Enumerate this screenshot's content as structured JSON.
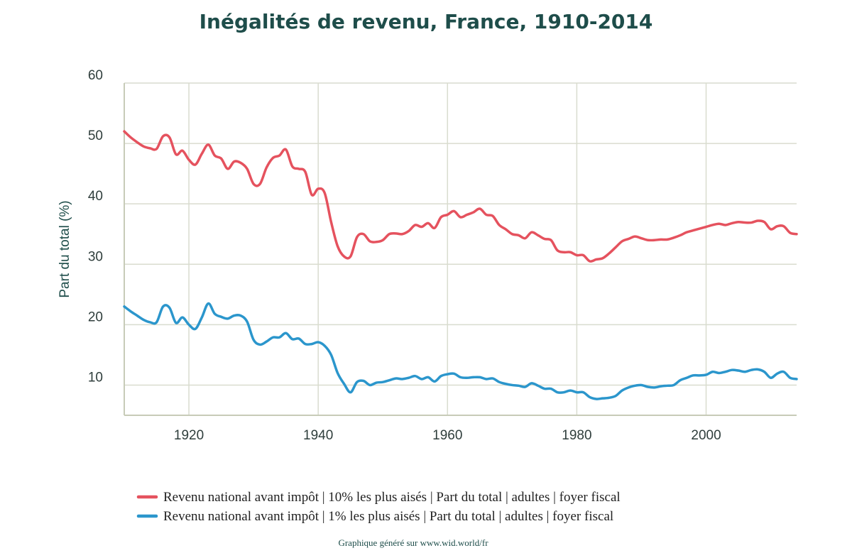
{
  "chart_data": {
    "type": "line",
    "title": "Inégalités de revenu, France, 1910-2014",
    "ylabel": "Part du total (%)",
    "xlim": [
      1910,
      2014
    ],
    "ylim": [
      5,
      60
    ],
    "xticks": [
      1920,
      1940,
      1960,
      1980,
      2000
    ],
    "yticks": [
      10,
      20,
      30,
      40,
      50,
      60
    ],
    "grid": true,
    "legend_position": "bottom",
    "footer": "Graphique généré sur www.wid.world/fr",
    "series": [
      {
        "name": "Revenu national avant impôt | 10% les plus aisés | Part du total | adultes | foyer fiscal",
        "color": "#e5525e",
        "x": [
          1910,
          1911,
          1912,
          1913,
          1914,
          1915,
          1916,
          1917,
          1918,
          1919,
          1920,
          1921,
          1922,
          1923,
          1924,
          1925,
          1926,
          1927,
          1928,
          1929,
          1930,
          1931,
          1932,
          1933,
          1934,
          1935,
          1936,
          1937,
          1938,
          1939,
          1940,
          1941,
          1942,
          1943,
          1944,
          1945,
          1946,
          1947,
          1948,
          1949,
          1950,
          1951,
          1952,
          1953,
          1954,
          1955,
          1956,
          1957,
          1958,
          1959,
          1960,
          1961,
          1962,
          1963,
          1964,
          1965,
          1966,
          1967,
          1968,
          1969,
          1970,
          1971,
          1972,
          1973,
          1974,
          1975,
          1976,
          1977,
          1978,
          1979,
          1980,
          1981,
          1982,
          1983,
          1984,
          1985,
          1986,
          1987,
          1988,
          1989,
          1990,
          1991,
          1992,
          1993,
          1994,
          1995,
          1996,
          1997,
          1998,
          1999,
          2000,
          2001,
          2002,
          2003,
          2004,
          2005,
          2006,
          2007,
          2008,
          2009,
          2010,
          2011,
          2012,
          2013,
          2014
        ],
        "y": [
          52,
          51,
          50.2,
          49.5,
          49.2,
          49.1,
          51.2,
          51,
          48.2,
          48.8,
          47.3,
          46.5,
          48.3,
          49.8,
          48,
          47.5,
          45.8,
          47,
          46.8,
          45.8,
          43.3,
          43.3,
          46,
          47.6,
          48,
          49,
          46.2,
          45.8,
          45.3,
          41.5,
          42.5,
          41.8,
          37,
          33,
          31.3,
          31.3,
          34.5,
          35,
          33.8,
          33.7,
          34,
          35,
          35.1,
          35,
          35.5,
          36.5,
          36.2,
          36.8,
          36,
          37.8,
          38.2,
          38.8,
          37.8,
          38.2,
          38.6,
          39.2,
          38.2,
          38,
          36.5,
          35.8,
          35,
          34.8,
          34.3,
          35.3,
          34.8,
          34.2,
          34,
          32.3,
          32,
          32,
          31.5,
          31.5,
          30.5,
          30.8,
          31,
          31.8,
          32.8,
          33.8,
          34.2,
          34.6,
          34.3,
          34,
          34,
          34.1,
          34.1,
          34.4,
          34.8,
          35.3,
          35.6,
          35.9,
          36.2,
          36.5,
          36.7,
          36.5,
          36.8,
          37,
          36.9,
          36.9,
          37.2,
          37,
          35.8,
          36.3,
          36.3,
          35.2,
          35
        ]
      },
      {
        "name": "Revenu national avant impôt | 1% les plus aisés | Part du total | adultes | foyer fiscal",
        "color": "#2b96cc",
        "x": [
          1910,
          1911,
          1912,
          1913,
          1914,
          1915,
          1916,
          1917,
          1918,
          1919,
          1920,
          1921,
          1922,
          1923,
          1924,
          1925,
          1926,
          1927,
          1928,
          1929,
          1930,
          1931,
          1932,
          1933,
          1934,
          1935,
          1936,
          1937,
          1938,
          1939,
          1940,
          1941,
          1942,
          1943,
          1944,
          1945,
          1946,
          1947,
          1948,
          1949,
          1950,
          1951,
          1952,
          1953,
          1954,
          1955,
          1956,
          1957,
          1958,
          1959,
          1960,
          1961,
          1962,
          1963,
          1964,
          1965,
          1966,
          1967,
          1968,
          1969,
          1970,
          1971,
          1972,
          1973,
          1974,
          1975,
          1976,
          1977,
          1978,
          1979,
          1980,
          1981,
          1982,
          1983,
          1984,
          1985,
          1986,
          1987,
          1988,
          1989,
          1990,
          1991,
          1992,
          1993,
          1994,
          1995,
          1996,
          1997,
          1998,
          1999,
          2000,
          2001,
          2002,
          2003,
          2004,
          2005,
          2006,
          2007,
          2008,
          2009,
          2010,
          2011,
          2012,
          2013,
          2014
        ],
        "y": [
          23,
          22.2,
          21.5,
          20.8,
          20.4,
          20.4,
          23,
          22.8,
          20.3,
          21.2,
          20,
          19.3,
          21.2,
          23.5,
          21.8,
          21.3,
          21,
          21.5,
          21.5,
          20.5,
          17.5,
          16.7,
          17.2,
          17.9,
          17.9,
          18.6,
          17.6,
          17.7,
          16.8,
          16.8,
          17.1,
          16.5,
          15,
          12,
          10.2,
          8.8,
          10.5,
          10.7,
          10,
          10.4,
          10.5,
          10.8,
          11.1,
          11,
          11.2,
          11.5,
          11,
          11.3,
          10.6,
          11.5,
          11.8,
          11.9,
          11.3,
          11.2,
          11.3,
          11.3,
          11,
          11.1,
          10.5,
          10.2,
          10,
          9.9,
          9.7,
          10.3,
          9.9,
          9.4,
          9.4,
          8.8,
          8.8,
          9.1,
          8.8,
          8.8,
          8,
          7.7,
          7.8,
          7.9,
          8.2,
          9.1,
          9.6,
          9.9,
          10,
          9.7,
          9.6,
          9.8,
          9.9,
          10,
          10.8,
          11.2,
          11.6,
          11.6,
          11.7,
          12.2,
          12,
          12.2,
          12.5,
          12.4,
          12.2,
          12.5,
          12.6,
          12.2,
          11.2,
          11.9,
          12.2,
          11.2,
          11
        ]
      }
    ]
  }
}
